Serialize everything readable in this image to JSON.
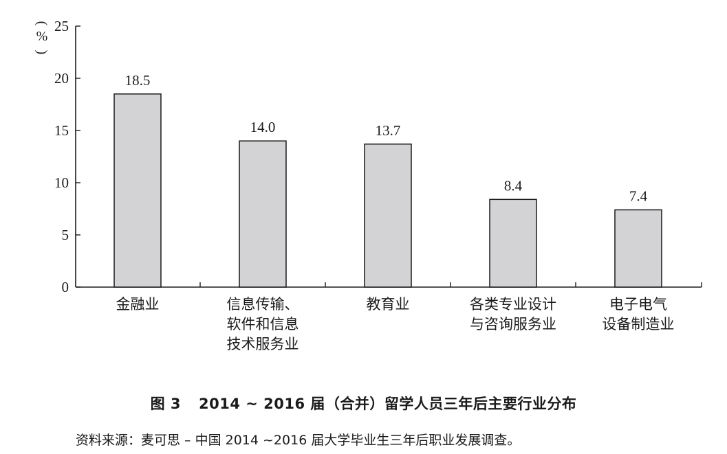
{
  "chart_data": {
    "type": "bar",
    "categories": [
      [
        "金融业"
      ],
      [
        "信息传输、",
        "软件和信息",
        "技术服务业"
      ],
      [
        "教育业"
      ],
      [
        "各类专业设计",
        "与咨询服务业"
      ],
      [
        "电子电气",
        "设备制造业"
      ]
    ],
    "values": [
      18.5,
      14.0,
      13.7,
      8.4,
      7.4
    ],
    "value_labels": [
      "18.5",
      "14.0",
      "13.7",
      "8.4",
      "7.4"
    ],
    "ylim": [
      0,
      25
    ],
    "yticks": [
      0,
      5,
      10,
      15,
      20,
      25
    ],
    "ylabel": "%",
    "grid": false,
    "bar_color": "#d3d3d5",
    "bar_edge_color": "#1a1a1a"
  },
  "caption": {
    "figure_number": "图 3",
    "title": "2014 ~ 2016 届（合并）留学人员三年后主要行业分布"
  },
  "source": "资料来源：麦可思 – 中国 2014 ~2016 届大学毕业生三年后职业发展调查。"
}
